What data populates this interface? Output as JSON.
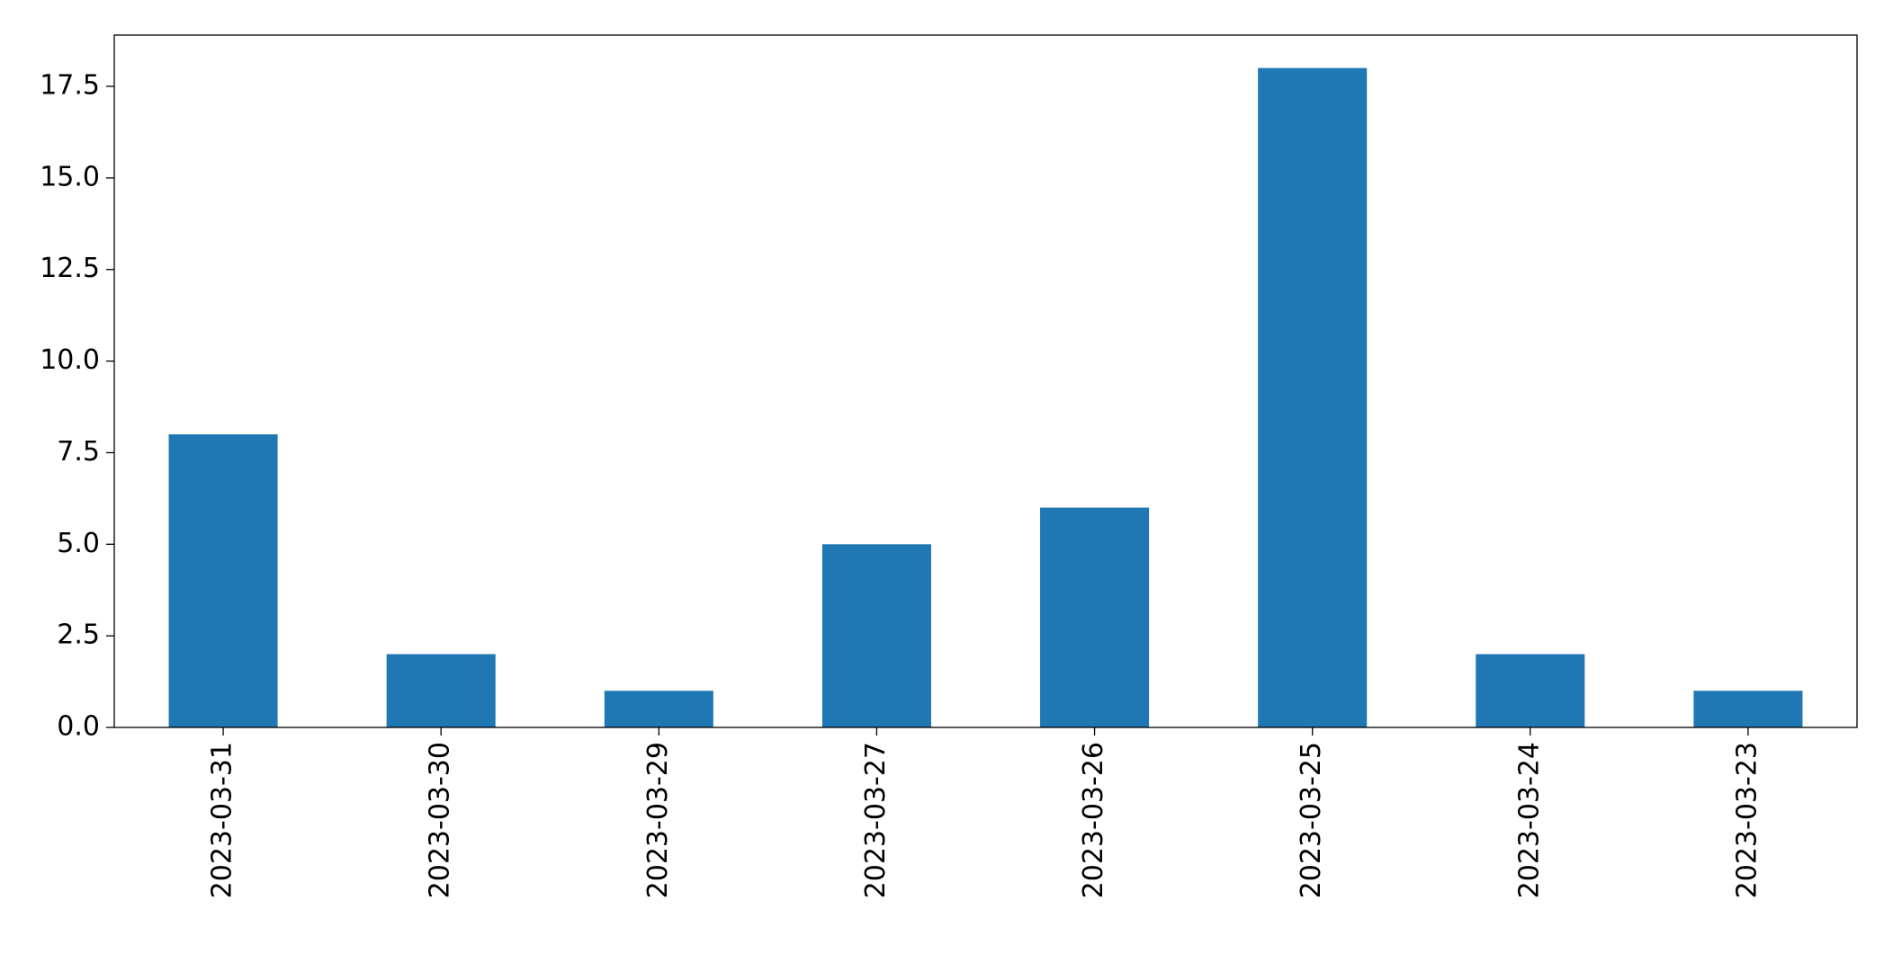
{
  "chart_data": {
    "type": "bar",
    "categories": [
      "2023-03-31",
      "2023-03-30",
      "2023-03-29",
      "2023-03-27",
      "2023-03-26",
      "2023-03-25",
      "2023-03-24",
      "2023-03-23"
    ],
    "values": [
      8,
      2,
      1,
      5,
      6,
      18,
      2,
      1
    ],
    "color": "#1f77b4",
    "ylim": [
      0,
      18.9
    ],
    "yticks": [
      {
        "value": 0,
        "label": "0.0"
      },
      2.5,
      {
        "value": 5,
        "label": "5.0"
      },
      7.5,
      {
        "value": 10,
        "label": "10.0"
      },
      12.5,
      {
        "value": 15,
        "label": "15.0"
      },
      17.5
    ],
    "grid": false
  }
}
